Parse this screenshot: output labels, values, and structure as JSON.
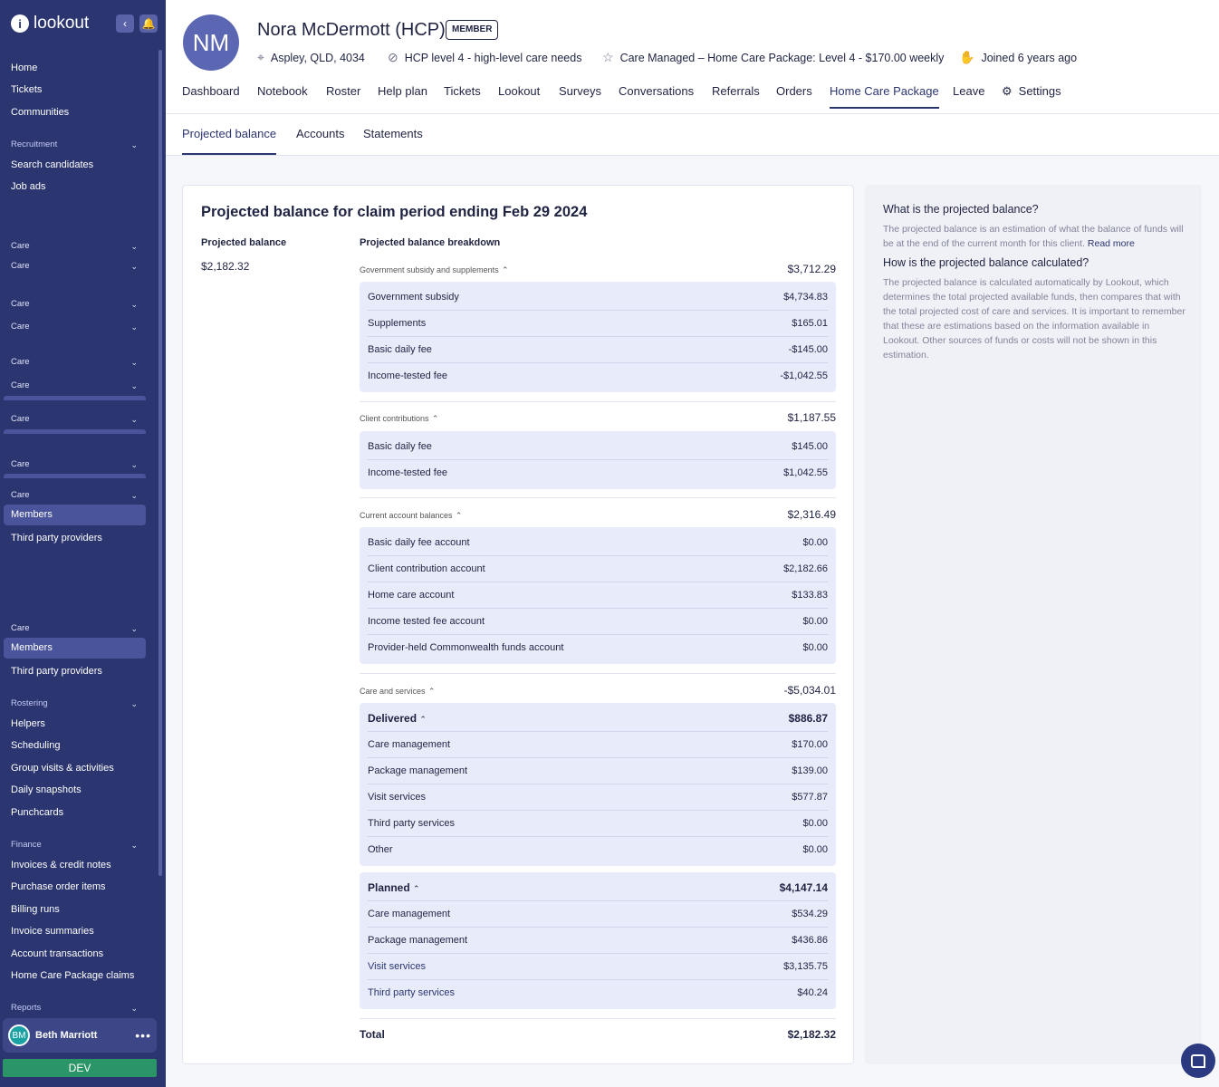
{
  "sidebar": {
    "brand": "lookout",
    "main_items": [
      "Home",
      "Tickets",
      "Communities"
    ],
    "recruitment": {
      "title": "Recruitment",
      "items": [
        "Search candidates",
        "Job ads"
      ]
    },
    "care_label": "Care",
    "care_items_a": [
      "Members",
      "Third party providers"
    ],
    "care_items_b": [
      "Members",
      "Third party providers"
    ],
    "rostering": {
      "title": "Rostering",
      "items": [
        "Helpers",
        "Scheduling",
        "Group visits & activities",
        "Daily snapshots",
        "Punchcards"
      ]
    },
    "finance": {
      "title": "Finance",
      "items": [
        "Invoices & credit notes",
        "Purchase order items",
        "Billing runs",
        "Invoice summaries",
        "Account transactions",
        "Home Care Package claims"
      ]
    },
    "reports": {
      "title": "Reports"
    },
    "user": {
      "initials": "BM",
      "name": "Beth Marriott"
    },
    "env": "DEV"
  },
  "header": {
    "initials": "NM",
    "name": "Nora McDermott (HCP)",
    "badge": "MEMBER",
    "location": "Aspley, QLD, 4034",
    "care_level": "HCP level 4 - high-level care needs",
    "care_managed": "Care Managed – Home Care Package: Level 4 - $170.00 weekly",
    "joined": "Joined 6 years ago",
    "tabs": [
      "Dashboard",
      "Notebook",
      "Roster",
      "Help plan",
      "Tickets",
      "Lookout",
      "Surveys",
      "Conversations",
      "Referrals",
      "Orders",
      "Home Care Package",
      "Leave",
      "Settings"
    ],
    "active_tab": "Home Care Package"
  },
  "subtabs": [
    "Projected balance",
    "Accounts",
    "Statements"
  ],
  "card": {
    "title": "Projected balance for claim period ending Feb 29 2024",
    "projected_label": "Projected balance",
    "projected_value": "$2,182.32",
    "breakdown_label": "Projected balance breakdown",
    "groups": [
      {
        "title": "Government subsidy and supplements",
        "value": "$3,712.29",
        "rows": [
          [
            "Government subsidy",
            "$4,734.83"
          ],
          [
            "Supplements",
            "$165.01"
          ],
          [
            "Basic daily fee",
            "-$145.00"
          ],
          [
            "Income-tested fee",
            "-$1,042.55"
          ]
        ]
      },
      {
        "title": "Client contributions",
        "value": "$1,187.55",
        "rows": [
          [
            "Basic daily fee",
            "$145.00"
          ],
          [
            "Income-tested fee",
            "$1,042.55"
          ]
        ]
      },
      {
        "title": "Current account balances",
        "value": "$2,316.49",
        "rows": [
          [
            "Basic daily fee account",
            "$0.00"
          ],
          [
            "Client contribution account",
            "$2,182.66"
          ],
          [
            "Home care account",
            "$133.83"
          ],
          [
            "Income tested fee account",
            "$0.00"
          ],
          [
            "Provider-held Commonwealth funds account",
            "$0.00"
          ]
        ]
      },
      {
        "title": "Care and services",
        "value": "-$5,034.01",
        "delivered": {
          "title": "Delivered",
          "value": "$886.87",
          "rows": [
            [
              "Care management",
              "$170.00"
            ],
            [
              "Package management",
              "$139.00"
            ],
            [
              "Visit services",
              "$577.87"
            ],
            [
              "Third party services",
              "$0.00"
            ],
            [
              "Other",
              "$0.00"
            ]
          ]
        },
        "planned": {
          "title": "Planned",
          "value": "$4,147.14",
          "rows": [
            [
              "Care management",
              "$534.29"
            ],
            [
              "Package management",
              "$436.86"
            ],
            [
              "Visit services",
              "$3,135.75"
            ],
            [
              "Third party services",
              "$40.24"
            ]
          ]
        }
      }
    ],
    "total_label": "Total",
    "total_value": "$2,182.32"
  },
  "info": {
    "q1": "What is the projected balance?",
    "a1": "The projected balance is an estimation of what the balance of funds will be at the end of the current month for this client.",
    "a1_link": "Read more",
    "q2": "How is the projected balance calculated?",
    "a2": "The projected balance is calculated automatically by Lookout, which determines the total projected available funds, then compares that with the total projected cost of care and services. It is important to remember that these are estimations based on the information available in Lookout. Other sources of funds or costs will not be shown in this estimation."
  }
}
